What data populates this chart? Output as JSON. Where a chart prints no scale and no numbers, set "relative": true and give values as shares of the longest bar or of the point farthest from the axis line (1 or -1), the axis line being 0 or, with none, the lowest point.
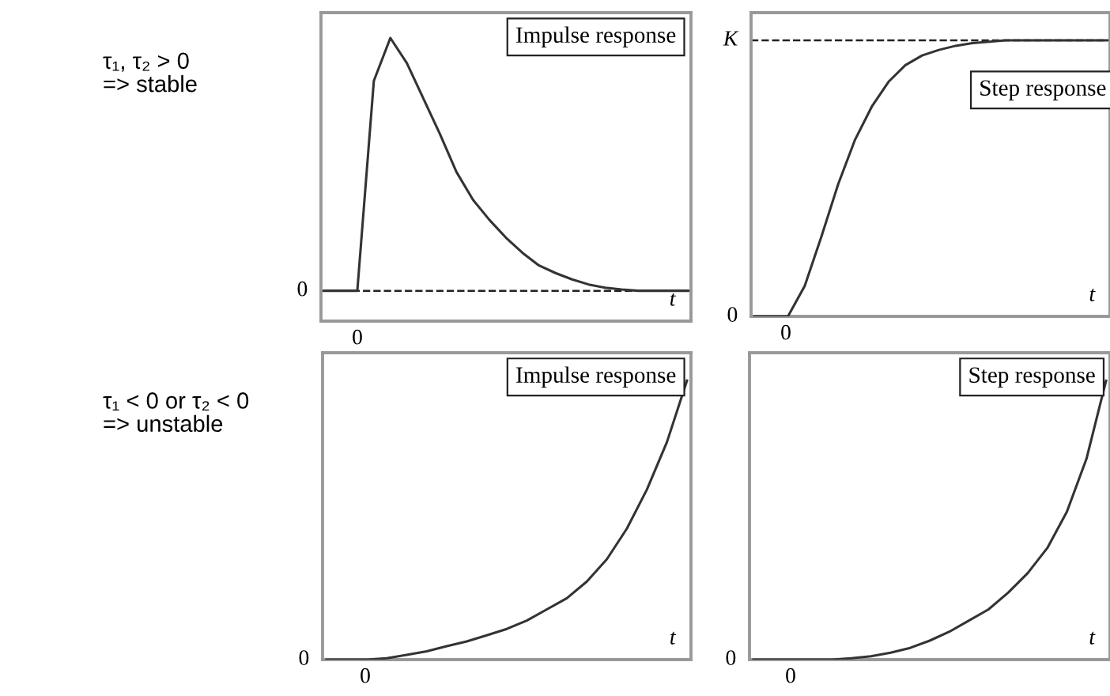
{
  "chart_data": [
    {
      "type": "line",
      "title": "Impulse response",
      "relative": true,
      "xlabel": "t",
      "annotations": [
        "τ₁, τ₂ > 0\n=> stable",
        "0",
        "0"
      ],
      "categories": [
        null,
        null,
        null,
        null,
        null,
        null,
        null,
        null,
        null,
        null,
        null,
        null,
        null,
        null,
        null,
        null,
        null,
        null,
        null,
        null,
        null,
        null,
        null
      ],
      "ref_lines": [
        {
          "axis": "y",
          "value": 0,
          "line_style": "dashed",
          "color": "#222222"
        }
      ],
      "series": [
        {
          "color": "#333333",
          "values": [
            0,
            0,
            0,
            0.83,
            1.0,
            0.9,
            0.76,
            0.62,
            0.47,
            0.36,
            0.28,
            0.21,
            0.15,
            0.1,
            0.07,
            0.045,
            0.025,
            0.012,
            0.005,
            0,
            0,
            0,
            0
          ]
        }
      ]
    },
    {
      "type": "line",
      "title": "Step response",
      "relative": true,
      "xlabel": "t",
      "categories": [
        null,
        null,
        null,
        null,
        null,
        null,
        null,
        null,
        null,
        null,
        null,
        null,
        null,
        null,
        null,
        null,
        null,
        null,
        null,
        null,
        null,
        null
      ],
      "annotations": [
        "0",
        "0"
      ],
      "ref_lines": [
        {
          "axis": "y",
          "value": 1,
          "label": "K",
          "line_style": "dashed",
          "color": "#222222"
        }
      ],
      "series": [
        {
          "color": "#333333",
          "values": [
            0,
            0,
            0,
            0.11,
            0.29,
            0.48,
            0.64,
            0.76,
            0.85,
            0.91,
            0.945,
            0.965,
            0.98,
            0.99,
            0.995,
            1,
            1,
            1,
            1,
            1,
            1,
            1
          ]
        }
      ]
    },
    {
      "type": "line",
      "title": "Impulse response",
      "relative": true,
      "xlabel": "t",
      "annotations": [
        "τ₁ < 0 or τ₂ < 0\n=> unstable",
        "0",
        "0"
      ],
      "categories": [
        null,
        null,
        null,
        null,
        null,
        null,
        null,
        null,
        null,
        null,
        null,
        null,
        null,
        null,
        null,
        null,
        null,
        null,
        null
      ],
      "series": [
        {
          "color": "#333333",
          "values": [
            0,
            0,
            0,
            0.005,
            0.017,
            0.03,
            0.048,
            0.065,
            0.087,
            0.11,
            0.14,
            0.18,
            0.22,
            0.28,
            0.36,
            0.47,
            0.61,
            0.78,
            1.0
          ]
        }
      ]
    },
    {
      "type": "line",
      "title": "Step response",
      "relative": true,
      "xlabel": "t",
      "annotations": [
        "0",
        "0"
      ],
      "categories": [
        null,
        null,
        null,
        null,
        null,
        null,
        null,
        null,
        null,
        null,
        null,
        null,
        null,
        null,
        null,
        null,
        null,
        null,
        null
      ],
      "series": [
        {
          "color": "#333333",
          "values": [
            0,
            0,
            0,
            0,
            0,
            0.005,
            0.012,
            0.025,
            0.042,
            0.068,
            0.1,
            0.14,
            0.18,
            0.24,
            0.31,
            0.4,
            0.53,
            0.72,
            1.0
          ]
        }
      ]
    }
  ]
}
